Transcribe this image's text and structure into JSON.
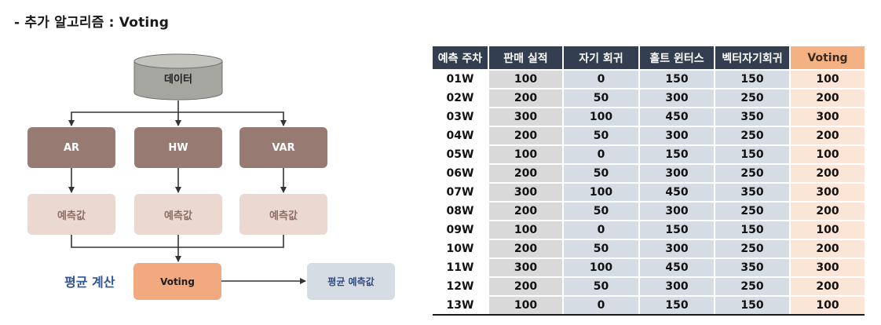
{
  "title": "- 추가 알고리즘 : Voting",
  "diagram": {
    "source": "데이터",
    "models": [
      "AR",
      "HW",
      "VAR"
    ],
    "prediction": "예측값",
    "average_label": "평균 계산",
    "voting": "Voting",
    "final": "평균 예측값"
  },
  "table": {
    "headers": [
      "예측 주차",
      "판매 실적",
      "자기 회귀",
      "홀트 윈터스",
      "벡터자기회귀",
      "Voting"
    ],
    "rows": [
      [
        "01W",
        "100",
        "0",
        "150",
        "150",
        "100"
      ],
      [
        "02W",
        "200",
        "50",
        "300",
        "250",
        "200"
      ],
      [
        "03W",
        "300",
        "100",
        "450",
        "350",
        "300"
      ],
      [
        "04W",
        "200",
        "50",
        "300",
        "250",
        "200"
      ],
      [
        "05W",
        "100",
        "0",
        "150",
        "150",
        "100"
      ],
      [
        "06W",
        "200",
        "50",
        "300",
        "250",
        "200"
      ],
      [
        "07W",
        "300",
        "100",
        "450",
        "350",
        "300"
      ],
      [
        "08W",
        "200",
        "50",
        "300",
        "250",
        "200"
      ],
      [
        "09W",
        "100",
        "0",
        "150",
        "150",
        "100"
      ],
      [
        "10W",
        "200",
        "50",
        "300",
        "250",
        "200"
      ],
      [
        "11W",
        "300",
        "100",
        "450",
        "350",
        "300"
      ],
      [
        "12W",
        "200",
        "50",
        "300",
        "250",
        "200"
      ],
      [
        "13W",
        "100",
        "0",
        "150",
        "150",
        "100"
      ]
    ]
  },
  "colors": {
    "header_dark": "#333f50",
    "header_voting": "#f4b183",
    "model_box": "#977b73",
    "prediction_box": "#ead8d1",
    "voting_box": "#f2a97f",
    "final_box": "#d6dce4",
    "average_text": "#2f5597"
  }
}
